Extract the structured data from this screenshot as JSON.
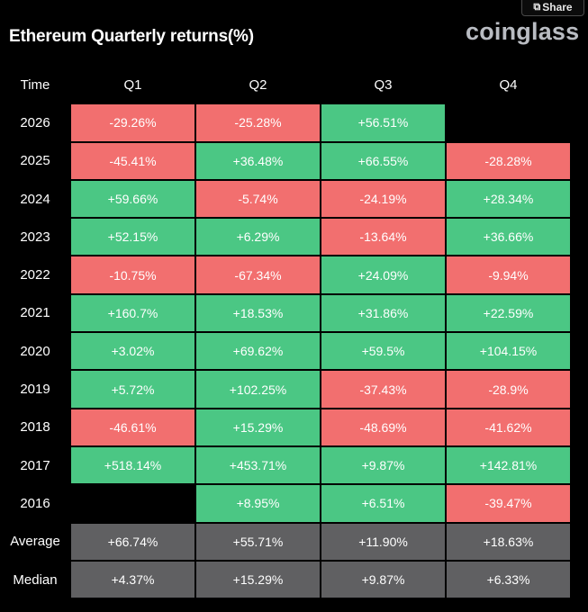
{
  "header": {
    "title": "Ethereum Quarterly returns(%)",
    "logo": "coinglass",
    "share_label": "Share"
  },
  "colors": {
    "positive": "#4bc784",
    "negative": "#f26f6f",
    "summary": "#606062",
    "background": "#000000"
  },
  "chart_data": {
    "type": "heatmap",
    "title": "Ethereum Quarterly returns(%)",
    "columns": [
      "Time",
      "Q1",
      "Q2",
      "Q3",
      "Q4"
    ],
    "rows": [
      {
        "label": "2026",
        "values": [
          "-29.26%",
          "-25.28%",
          "+56.51%",
          ""
        ]
      },
      {
        "label": "2025",
        "values": [
          "-45.41%",
          "+36.48%",
          "+66.55%",
          "-28.28%"
        ]
      },
      {
        "label": "2024",
        "values": [
          "+59.66%",
          "-5.74%",
          "-24.19%",
          "+28.34%"
        ]
      },
      {
        "label": "2023",
        "values": [
          "+52.15%",
          "+6.29%",
          "-13.64%",
          "+36.66%"
        ]
      },
      {
        "label": "2022",
        "values": [
          "-10.75%",
          "-67.34%",
          "+24.09%",
          "-9.94%"
        ]
      },
      {
        "label": "2021",
        "values": [
          "+160.7%",
          "+18.53%",
          "+31.86%",
          "+22.59%"
        ]
      },
      {
        "label": "2020",
        "values": [
          "+3.02%",
          "+69.62%",
          "+59.5%",
          "+104.15%"
        ]
      },
      {
        "label": "2019",
        "values": [
          "+5.72%",
          "+102.25%",
          "-37.43%",
          "-28.9%"
        ]
      },
      {
        "label": "2018",
        "values": [
          "-46.61%",
          "+15.29%",
          "-48.69%",
          "-41.62%"
        ]
      },
      {
        "label": "2017",
        "values": [
          "+518.14%",
          "+453.71%",
          "+9.87%",
          "+142.81%"
        ]
      },
      {
        "label": "2016",
        "values": [
          "",
          "+8.95%",
          "+6.51%",
          "-39.47%"
        ]
      }
    ],
    "summary_rows": [
      {
        "label": "Average",
        "values": [
          "+66.74%",
          "+55.71%",
          "+11.90%",
          "+18.63%"
        ]
      },
      {
        "label": "Median",
        "values": [
          "+4.37%",
          "+15.29%",
          "+9.87%",
          "+6.33%"
        ]
      }
    ]
  }
}
